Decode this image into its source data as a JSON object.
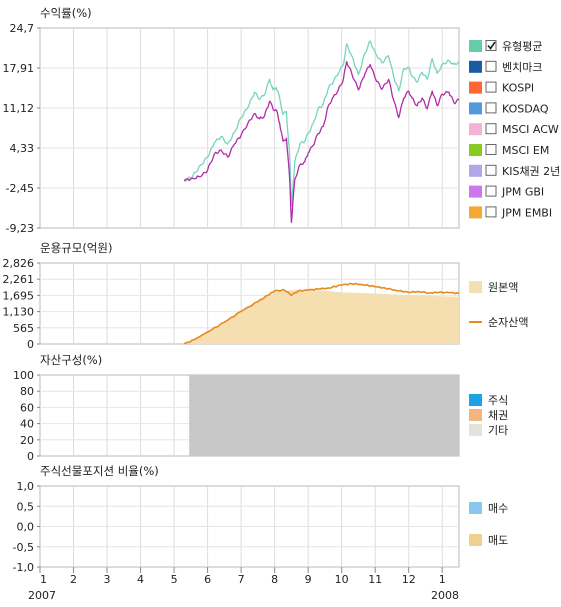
{
  "chart_data": [
    {
      "type": "line",
      "title": "수익률(%)",
      "y_ticks": [
        "24,7",
        "17,91",
        "11,12",
        "4,33",
        "-2,45",
        "-9,23"
      ],
      "ylim": [
        -9.23,
        24.7
      ],
      "legend": [
        {
          "label": "유형평균",
          "color": "#66ccaa",
          "checked": true
        },
        {
          "label": "벤치마크",
          "color": "#1a5ba6",
          "checked": false
        },
        {
          "label": "KOSPI",
          "color": "#ff6633",
          "checked": false
        },
        {
          "label": "KOSDAQ",
          "color": "#5599dd",
          "checked": false
        },
        {
          "label": "MSCI ACW",
          "color": "#f2b3d6",
          "checked": false
        },
        {
          "label": "MSCI EM",
          "color": "#88cc22",
          "checked": false
        },
        {
          "label": "KIS채권 2년",
          "color": "#b3a6e6",
          "checked": false
        },
        {
          "label": "JPM GBI",
          "color": "#cc77ee",
          "checked": false
        },
        {
          "label": "JPM EMBI",
          "color": "#f5a833",
          "checked": false
        }
      ],
      "series": [
        {
          "name": "유형평균",
          "color": "#77d4be",
          "points": [
            [
              5.3,
              -1.2
            ],
            [
              5.55,
              -0.5
            ],
            [
              5.8,
              1.5
            ],
            [
              6.0,
              2.8
            ],
            [
              6.2,
              5.2
            ],
            [
              6.4,
              6.3
            ],
            [
              6.6,
              5.0
            ],
            [
              6.8,
              7.0
            ],
            [
              7.0,
              9.5
            ],
            [
              7.2,
              11.2
            ],
            [
              7.4,
              13.8
            ],
            [
              7.55,
              12.6
            ],
            [
              7.7,
              13.4
            ],
            [
              7.85,
              16.0
            ],
            [
              7.95,
              14.2
            ],
            [
              8.05,
              14.6
            ],
            [
              8.15,
              12.8
            ],
            [
              8.25,
              10.0
            ],
            [
              8.35,
              10.5
            ],
            [
              8.45,
              3.0
            ],
            [
              8.5,
              -5.5
            ],
            [
              8.6,
              2.0
            ],
            [
              8.75,
              5.0
            ],
            [
              8.9,
              5.5
            ],
            [
              9.0,
              6.8
            ],
            [
              9.15,
              8.5
            ],
            [
              9.3,
              11.0
            ],
            [
              9.45,
              11.8
            ],
            [
              9.6,
              14.5
            ],
            [
              9.75,
              15.6
            ],
            [
              9.9,
              17.0
            ],
            [
              10.05,
              18.5
            ],
            [
              10.15,
              22.0
            ],
            [
              10.3,
              20.0
            ],
            [
              10.5,
              16.8
            ],
            [
              10.7,
              20.5
            ],
            [
              10.85,
              22.5
            ],
            [
              11.0,
              20.5
            ],
            [
              11.2,
              18.8
            ],
            [
              11.4,
              20.0
            ],
            [
              11.55,
              16.5
            ],
            [
              11.7,
              14.0
            ],
            [
              11.85,
              17.8
            ],
            [
              12.0,
              18.0
            ],
            [
              12.1,
              16.5
            ],
            [
              12.25,
              15.5
            ],
            [
              12.4,
              17.2
            ],
            [
              12.55,
              16.0
            ],
            [
              12.7,
              19.5
            ],
            [
              12.85,
              17.0
            ],
            [
              13.0,
              18.5
            ],
            [
              13.2,
              19.2
            ],
            [
              13.35,
              18.5
            ],
            [
              13.5,
              19.0
            ]
          ]
        },
        {
          "name": "KOSPI",
          "color": "#b02ca8",
          "points": [
            [
              5.3,
              -1.2
            ],
            [
              5.55,
              -0.8
            ],
            [
              5.8,
              -0.5
            ],
            [
              6.0,
              0.6
            ],
            [
              6.2,
              3.3
            ],
            [
              6.4,
              4.0
            ],
            [
              6.6,
              2.8
            ],
            [
              6.8,
              5.0
            ],
            [
              7.0,
              6.5
            ],
            [
              7.2,
              8.5
            ],
            [
              7.4,
              10.2
            ],
            [
              7.55,
              9.3
            ],
            [
              7.7,
              9.8
            ],
            [
              7.85,
              12.3
            ],
            [
              7.95,
              11.0
            ],
            [
              8.05,
              10.8
            ],
            [
              8.15,
              8.5
            ],
            [
              8.25,
              5.5
            ],
            [
              8.35,
              6.0
            ],
            [
              8.45,
              -1.0
            ],
            [
              8.5,
              -8.3
            ],
            [
              8.6,
              -1.0
            ],
            [
              8.75,
              1.5
            ],
            [
              8.9,
              2.0
            ],
            [
              9.0,
              3.5
            ],
            [
              9.15,
              4.8
            ],
            [
              9.3,
              6.8
            ],
            [
              9.45,
              8.0
            ],
            [
              9.6,
              11.5
            ],
            [
              9.75,
              13.0
            ],
            [
              9.9,
              14.2
            ],
            [
              10.05,
              16.0
            ],
            [
              10.15,
              19.0
            ],
            [
              10.3,
              17.0
            ],
            [
              10.5,
              14.2
            ],
            [
              10.7,
              17.0
            ],
            [
              10.85,
              18.5
            ],
            [
              11.0,
              16.2
            ],
            [
              11.2,
              14.3
            ],
            [
              11.4,
              16.0
            ],
            [
              11.55,
              12.5
            ],
            [
              11.7,
              9.5
            ],
            [
              11.85,
              12.8
            ],
            [
              12.0,
              14.0
            ],
            [
              12.1,
              12.8
            ],
            [
              12.25,
              11.5
            ],
            [
              12.4,
              12.8
            ],
            [
              12.55,
              11.0
            ],
            [
              12.7,
              14.0
            ],
            [
              12.85,
              11.5
            ],
            [
              13.0,
              13.5
            ],
            [
              13.2,
              13.8
            ],
            [
              13.35,
              12.0
            ],
            [
              13.5,
              12.5
            ]
          ]
        }
      ]
    },
    {
      "type": "area",
      "title": "운용규모(억원)",
      "y_ticks": [
        "2,826",
        "2,261",
        "1,695",
        "1,130",
        "565",
        "0"
      ],
      "ylim": [
        0,
        2826
      ],
      "legend": [
        {
          "label": "원본액",
          "color": "#f5deb0",
          "kind": "area"
        },
        {
          "label": "순자산액",
          "color": "#e58a1f",
          "kind": "line"
        }
      ],
      "series": [
        {
          "name": "원본액",
          "color": "#f5deb0",
          "points": [
            [
              5.3,
              0
            ],
            [
              5.6,
              150
            ],
            [
              6.0,
              400
            ],
            [
              6.5,
              750
            ],
            [
              7.0,
              1150
            ],
            [
              7.5,
              1500
            ],
            [
              8.0,
              1800
            ],
            [
              8.5,
              1880
            ],
            [
              9.0,
              1900
            ],
            [
              9.5,
              1860
            ],
            [
              10.0,
              1800
            ],
            [
              10.5,
              1780
            ],
            [
              11.0,
              1760
            ],
            [
              11.5,
              1730
            ],
            [
              12.0,
              1700
            ],
            [
              12.5,
              1680
            ],
            [
              13.0,
              1660
            ],
            [
              13.5,
              1650
            ]
          ]
        },
        {
          "name": "순자산액",
          "color": "#e58a1f",
          "points": [
            [
              5.3,
              0
            ],
            [
              5.6,
              150
            ],
            [
              6.0,
              420
            ],
            [
              6.5,
              760
            ],
            [
              7.0,
              1140
            ],
            [
              7.5,
              1480
            ],
            [
              7.8,
              1700
            ],
            [
              8.0,
              1850
            ],
            [
              8.3,
              1880
            ],
            [
              8.5,
              1700
            ],
            [
              8.7,
              1850
            ],
            [
              9.0,
              1880
            ],
            [
              9.3,
              1920
            ],
            [
              9.6,
              1950
            ],
            [
              10.0,
              2060
            ],
            [
              10.3,
              2100
            ],
            [
              10.6,
              2080
            ],
            [
              11.0,
              2000
            ],
            [
              11.3,
              1950
            ],
            [
              11.6,
              1880
            ],
            [
              12.0,
              1800
            ],
            [
              12.3,
              1830
            ],
            [
              12.6,
              1780
            ],
            [
              12.9,
              1800
            ],
            [
              13.2,
              1790
            ],
            [
              13.5,
              1770
            ]
          ]
        }
      ]
    },
    {
      "type": "area",
      "title": "자산구성(%)",
      "y_ticks": [
        "100",
        "80",
        "60",
        "40",
        "20",
        "0"
      ],
      "ylim": [
        0,
        100
      ],
      "legend": [
        {
          "label": "주식",
          "color": "#1ca3e6"
        },
        {
          "label": "채권",
          "color": "#f5b57e"
        },
        {
          "label": "기타",
          "color": "#e3e3dc"
        }
      ],
      "fill": {
        "name": "기타",
        "x_start": 5.45,
        "x_end": 13.5,
        "value": 100,
        "color": "#c8c8c8"
      }
    },
    {
      "type": "bar",
      "title": "주식선물포지션 비율(%)",
      "y_ticks": [
        "1,0",
        "0,5",
        "0,0",
        "-0,5",
        "-1,0"
      ],
      "ylim": [
        -1,
        1
      ],
      "legend": [
        {
          "label": "매수",
          "color": "#88c8f0"
        },
        {
          "label": "매도",
          "color": "#f0d08c"
        }
      ]
    }
  ],
  "x_axis": {
    "month_labels": [
      "1",
      "2",
      "3",
      "4",
      "5",
      "6",
      "7",
      "8",
      "9",
      "10",
      "11",
      "12",
      "1"
    ],
    "year_labels": [
      "2007",
      "2008"
    ]
  }
}
